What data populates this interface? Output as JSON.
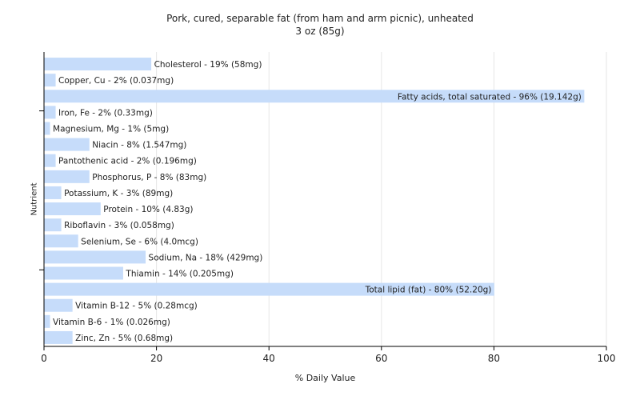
{
  "chart_data": {
    "type": "bar",
    "orientation": "horizontal",
    "title": "Pork, cured, separable fat (from ham and arm picnic), unheated",
    "subtitle": "3 oz (85g)",
    "xlabel": "% Daily Value",
    "ylabel": "Nutrient",
    "xlim": [
      0,
      100
    ],
    "xticks": [
      0,
      20,
      40,
      60,
      80,
      100
    ],
    "grid": "vertical",
    "colors": {
      "bar": "#c6dcfa",
      "grid": "#e6e6e6",
      "axis": "#000000"
    },
    "categories": [
      "Cholesterol",
      "Copper, Cu",
      "Fatty acids, total saturated",
      "Iron, Fe",
      "Magnesium, Mg",
      "Niacin",
      "Pantothenic acid",
      "Phosphorus, P",
      "Potassium, K",
      "Protein",
      "Riboflavin",
      "Selenium, Se",
      "Sodium, Na",
      "Thiamin",
      "Total lipid (fat)",
      "Vitamin B-12",
      "Vitamin B-6",
      "Zinc, Zn"
    ],
    "values": [
      19,
      2,
      96,
      2,
      1,
      8,
      2,
      8,
      3,
      10,
      3,
      6,
      18,
      14,
      80,
      5,
      1,
      5
    ],
    "labels": [
      "Cholesterol - 19% (58mg)",
      "Copper, Cu - 2% (0.037mg)",
      "Fatty acids, total saturated - 96% (19.142g)",
      "Iron, Fe - 2% (0.33mg)",
      "Magnesium, Mg - 1% (5mg)",
      "Niacin - 8% (1.547mg)",
      "Pantothenic acid - 2% (0.196mg)",
      "Phosphorus, P - 8% (83mg)",
      "Potassium, K - 3% (89mg)",
      "Protein - 10% (4.83g)",
      "Riboflavin - 3% (0.058mg)",
      "Selenium, Se - 6% (4.0mcg)",
      "Sodium, Na - 18% (429mg)",
      "Thiamin - 14% (0.205mg)",
      "Total lipid (fat) - 80% (52.20g)",
      "Vitamin B-12 - 5% (0.28mcg)",
      "Vitamin B-6 - 1% (0.026mg)",
      "Zinc, Zn - 5% (0.68mg)"
    ]
  }
}
